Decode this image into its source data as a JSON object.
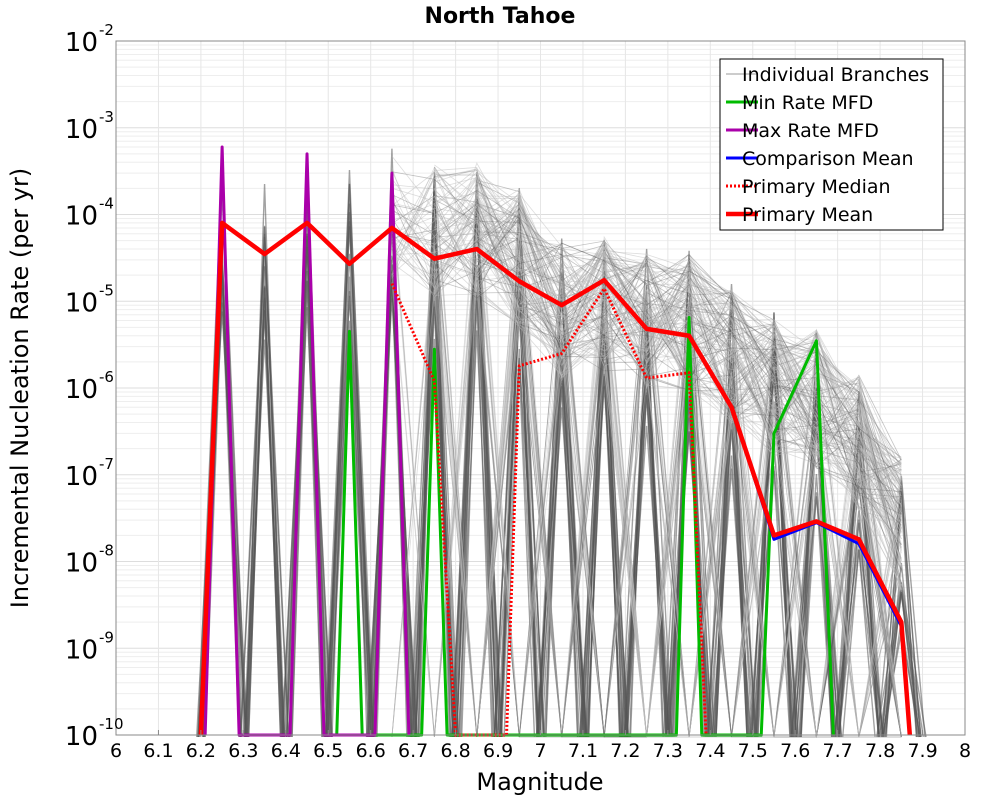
{
  "chart_data": {
    "type": "line",
    "title": "North Tahoe",
    "xlabel": "Magnitude",
    "ylabel": "Incremental Nucleation Rate (per yr)",
    "xlim": [
      6,
      8
    ],
    "ylim_exponent": [
      -10,
      -2
    ],
    "y_scale": "log",
    "grid": true,
    "legend_position": "top-right",
    "x_ticks": [
      "6",
      "6.1",
      "6.2",
      "6.3",
      "6.4",
      "6.5",
      "6.6",
      "6.7",
      "6.8",
      "6.9",
      "7",
      "7.1",
      "7.2",
      "7.3",
      "7.4",
      "7.5",
      "7.6",
      "7.7",
      "7.8",
      "7.9",
      "8"
    ],
    "y_ticks": [
      {
        "base": "10",
        "exp": "-2",
        "value": -2
      },
      {
        "base": "10",
        "exp": "-3",
        "value": -3
      },
      {
        "base": "10",
        "exp": "-4",
        "value": -4
      },
      {
        "base": "10",
        "exp": "-5",
        "value": -5
      },
      {
        "base": "10",
        "exp": "-6",
        "value": -6
      },
      {
        "base": "10",
        "exp": "-7",
        "value": -7
      },
      {
        "base": "10",
        "exp": "-8",
        "value": -8
      },
      {
        "base": "10",
        "exp": "-9",
        "value": -9
      },
      {
        "base": "10",
        "exp": "-10",
        "value": -10
      }
    ],
    "branch_envelope": {
      "name": "Individual Branches",
      "color": "#555555",
      "light_color": "#bbbbbb",
      "peaks": [
        {
          "x": 6.25,
          "max": 0.0008
        },
        {
          "x": 6.35,
          "max": 0.0005
        },
        {
          "x": 6.45,
          "max": 0.0005
        },
        {
          "x": 6.55,
          "max": 0.00035
        },
        {
          "x": 6.65,
          "max": 0.0006
        },
        {
          "x": 6.75,
          "max": 0.0005
        },
        {
          "x": 6.85,
          "max": 0.0005
        },
        {
          "x": 6.95,
          "max": 0.00025
        },
        {
          "x": 7.05,
          "max": 6e-05
        },
        {
          "x": 7.15,
          "max": 7e-05
        },
        {
          "x": 7.25,
          "max": 5e-05
        },
        {
          "x": 7.35,
          "max": 4.5e-05
        },
        {
          "x": 7.45,
          "max": 1.8e-05
        },
        {
          "x": 7.55,
          "max": 8e-06
        },
        {
          "x": 7.65,
          "max": 6e-06
        },
        {
          "x": 7.75,
          "max": 1.8e-06
        },
        {
          "x": 7.85,
          "max": 2e-07
        }
      ]
    },
    "series": [
      {
        "name": "Min Rate MFD",
        "color": "#00bb00",
        "width": 3,
        "dash": "",
        "points": [
          [
            6.52,
            1e-10
          ],
          [
            6.55,
            4.5e-06
          ],
          [
            6.58,
            1e-10
          ],
          [
            6.72,
            1e-10
          ],
          [
            6.75,
            2.8e-06
          ],
          [
            6.78,
            1e-10
          ],
          [
            7.32,
            1e-10
          ],
          [
            7.35,
            6.5e-06
          ],
          [
            7.38,
            1e-10
          ],
          [
            7.52,
            1e-10
          ],
          [
            7.55,
            3e-07
          ],
          [
            7.65,
            3.5e-06
          ],
          [
            7.69,
            1e-10
          ]
        ]
      },
      {
        "name": "Max Rate MFD",
        "color": "#aa00aa",
        "width": 3,
        "dash": "",
        "points": [
          [
            6.21,
            1e-10
          ],
          [
            6.25,
            0.0006
          ],
          [
            6.29,
            1e-10
          ],
          [
            6.41,
            1e-10
          ],
          [
            6.45,
            0.0005
          ],
          [
            6.49,
            1e-10
          ],
          [
            6.61,
            1e-10
          ],
          [
            6.65,
            0.0003
          ],
          [
            6.69,
            1e-10
          ]
        ]
      },
      {
        "name": "Comparison Mean",
        "color": "#0000ff",
        "width": 3,
        "dash": "",
        "points": [
          [
            7.45,
            6e-07
          ],
          [
            7.55,
            1.8e-08
          ],
          [
            7.65,
            2.8e-08
          ],
          [
            7.75,
            1.6e-08
          ],
          [
            7.85,
            1.8e-09
          ]
        ]
      },
      {
        "name": "Primary Median",
        "color": "#ff0000",
        "width": 3,
        "dash": "2,2",
        "points": [
          [
            6.65,
            1.6e-05
          ],
          [
            6.75,
            1.2e-06
          ],
          [
            6.8,
            1e-10
          ],
          [
            6.92,
            1e-10
          ],
          [
            6.95,
            1.8e-06
          ],
          [
            7.05,
            2.5e-06
          ],
          [
            7.15,
            1.4e-05
          ],
          [
            7.25,
            1.3e-06
          ],
          [
            7.35,
            1.5e-06
          ],
          [
            7.39,
            1e-10
          ]
        ]
      },
      {
        "name": "Primary Mean",
        "color": "#ff0000",
        "width": 4.5,
        "dash": "",
        "points": [
          [
            6.2,
            1e-10
          ],
          [
            6.25,
            8e-05
          ],
          [
            6.35,
            3.5e-05
          ],
          [
            6.45,
            8e-05
          ],
          [
            6.55,
            2.7e-05
          ],
          [
            6.65,
            7e-05
          ],
          [
            6.75,
            3.1e-05
          ],
          [
            6.85,
            4e-05
          ],
          [
            6.95,
            1.7e-05
          ],
          [
            7.05,
            9e-06
          ],
          [
            7.15,
            1.75e-05
          ],
          [
            7.25,
            4.8e-06
          ],
          [
            7.35,
            4e-06
          ],
          [
            7.45,
            6e-07
          ],
          [
            7.55,
            2e-08
          ],
          [
            7.65,
            2.9e-08
          ],
          [
            7.75,
            1.8e-08
          ],
          [
            7.85,
            2e-09
          ],
          [
            7.87,
            1e-10
          ]
        ]
      }
    ],
    "legend": [
      {
        "label": "Individual Branches",
        "color": "#bbbbbb",
        "width": 1.5,
        "dash": ""
      },
      {
        "label": "Min Rate MFD",
        "color": "#00bb00",
        "width": 3,
        "dash": ""
      },
      {
        "label": "Max Rate MFD",
        "color": "#aa00aa",
        "width": 3,
        "dash": ""
      },
      {
        "label": "Comparison Mean",
        "color": "#0000ff",
        "width": 3,
        "dash": ""
      },
      {
        "label": "Primary Median",
        "color": "#ff0000",
        "width": 3,
        "dash": "2,2"
      },
      {
        "label": "Primary Mean",
        "color": "#ff0000",
        "width": 4.5,
        "dash": ""
      }
    ]
  }
}
